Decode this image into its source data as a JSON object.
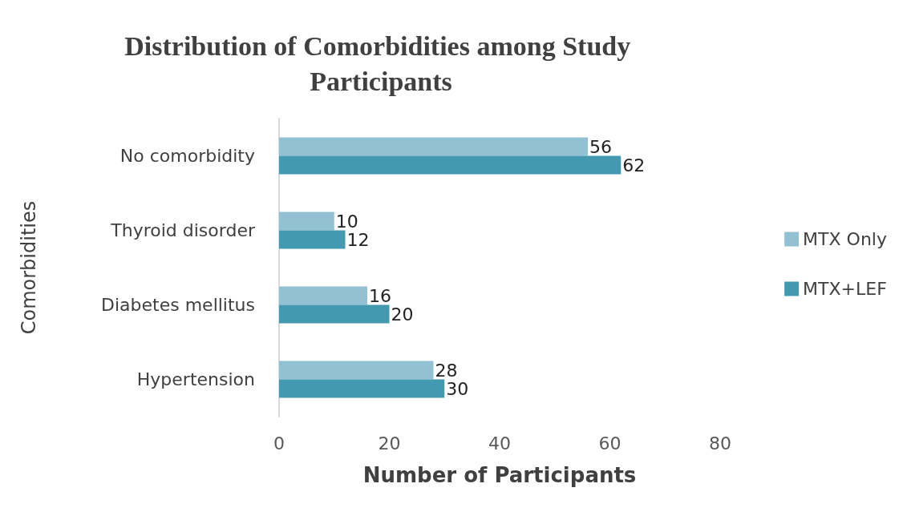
{
  "chart_data": {
    "type": "bar",
    "orientation": "horizontal",
    "title": "Distribution of Comorbidities among Study Participants",
    "xlabel": "Number of Participants",
    "ylabel": "Comorbidities",
    "categories": [
      "No comorbidity",
      "Thyroid disorder",
      "Diabetes mellitus",
      "Hypertension"
    ],
    "series": [
      {
        "name": "MTX Only",
        "color": "#92c1d3",
        "values": [
          56,
          10,
          16,
          28
        ]
      },
      {
        "name": "MTX+LEF",
        "color": "#4299b0",
        "values": [
          62,
          12,
          20,
          30
        ]
      }
    ],
    "xlim": [
      0,
      80
    ],
    "xticks": [
      0,
      20,
      40,
      60,
      80
    ],
    "grid": false,
    "legend": "right",
    "data_labels": true
  }
}
